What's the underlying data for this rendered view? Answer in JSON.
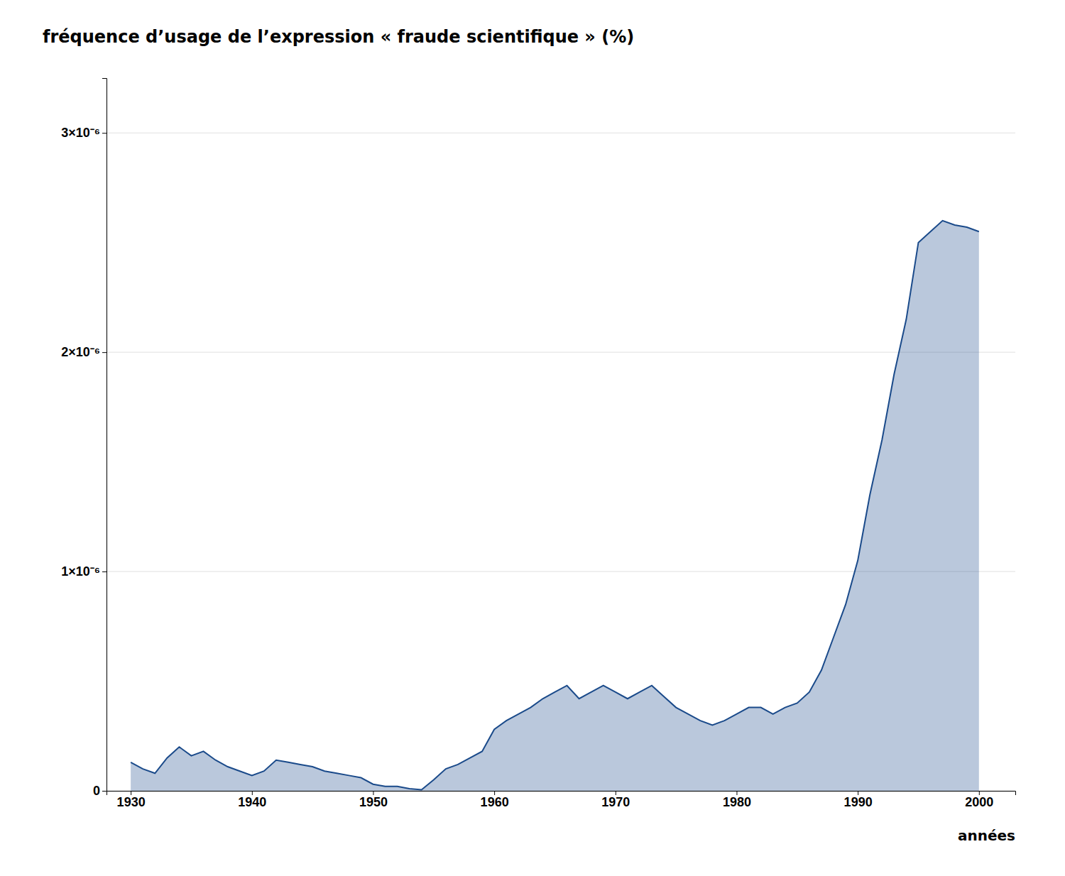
{
  "chart_data": {
    "type": "area",
    "title": "fréquence d’usage de l’expression « fraude scientifique » (%)",
    "xlabel": "années",
    "x": [
      1930,
      1931,
      1932,
      1933,
      1934,
      1935,
      1936,
      1937,
      1938,
      1939,
      1940,
      1941,
      1942,
      1943,
      1944,
      1945,
      1946,
      1947,
      1948,
      1949,
      1950,
      1951,
      1952,
      1953,
      1954,
      1955,
      1956,
      1957,
      1958,
      1959,
      1960,
      1961,
      1962,
      1963,
      1964,
      1965,
      1966,
      1967,
      1968,
      1969,
      1970,
      1971,
      1972,
      1973,
      1974,
      1975,
      1976,
      1977,
      1978,
      1979,
      1980,
      1981,
      1982,
      1983,
      1984,
      1985,
      1986,
      1987,
      1988,
      1989,
      1990,
      1991,
      1992,
      1993,
      1994,
      1995,
      1996,
      1997,
      1998,
      1999,
      2000
    ],
    "values": [
      1.3e-07,
      1e-07,
      8e-08,
      1.5e-07,
      2e-07,
      1.6e-07,
      1.8e-07,
      1.4e-07,
      1.1e-07,
      9e-08,
      7e-08,
      9e-08,
      1.4e-07,
      1.3e-07,
      1.2e-07,
      1.1e-07,
      9e-08,
      8e-08,
      7e-08,
      6e-08,
      3e-08,
      2e-08,
      2e-08,
      1e-08,
      5e-09,
      5e-08,
      1e-07,
      1.2e-07,
      1.5e-07,
      1.8e-07,
      2.8e-07,
      3.2e-07,
      3.5e-07,
      3.8e-07,
      4.2e-07,
      4.5e-07,
      4.8e-07,
      4.2e-07,
      4.5e-07,
      4.8e-07,
      4.5e-07,
      4.2e-07,
      4.5e-07,
      4.8e-07,
      4.3e-07,
      3.8e-07,
      3.5e-07,
      3.2e-07,
      3e-07,
      3.2e-07,
      3.5e-07,
      3.8e-07,
      3.8e-07,
      3.5e-07,
      3.8e-07,
      4e-07,
      4.5e-07,
      5.5e-07,
      7e-07,
      8.5e-07,
      1.05e-06,
      1.35e-06,
      1.6e-06,
      1.9e-06,
      2.15e-06,
      2.5e-06,
      2.55e-06,
      2.6e-06,
      2.58e-06,
      2.57e-06,
      2.55e-06
    ],
    "color": "#1a4a8a",
    "xlim": [
      1928,
      2003
    ],
    "ylim": [
      0,
      3.25e-06
    ],
    "xticks": [
      1930,
      1940,
      1950,
      1960,
      1970,
      1980,
      1990,
      2000
    ],
    "yticks": [
      0,
      {
        "value": 1e-06,
        "label": "1×10⁻⁶"
      },
      {
        "value": 2e-06,
        "label": "2×10⁻⁶"
      },
      {
        "value": 3e-06,
        "label": "3×10⁻⁶"
      }
    ],
    "grid": true
  }
}
